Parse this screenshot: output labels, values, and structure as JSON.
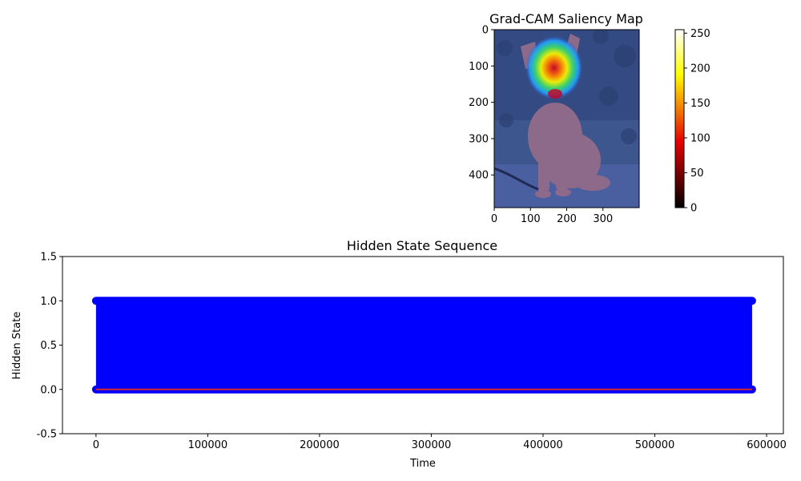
{
  "chart_data": [
    {
      "type": "heatmap",
      "title": "Grad-CAM Saliency Map",
      "xlabel": "",
      "ylabel": "",
      "xlim": [
        0,
        400
      ],
      "ylim": [
        490,
        0
      ],
      "x_ticks": [
        0,
        100,
        200,
        300
      ],
      "y_ticks": [
        0,
        100,
        200,
        300,
        400
      ],
      "colorbar": {
        "colormap": "hot",
        "range": [
          0,
          255
        ],
        "ticks": [
          0,
          50,
          100,
          150,
          200,
          250
        ]
      },
      "hotspot_center": [
        165,
        105
      ]
    },
    {
      "type": "line",
      "title": "Hidden State Sequence",
      "xlabel": "Time",
      "ylabel": "Hidden State",
      "xlim": [
        -30000,
        615000
      ],
      "ylim": [
        -0.5,
        1.5
      ],
      "x_ticks": [
        0,
        100000,
        200000,
        300000,
        400000,
        500000,
        600000
      ],
      "y_ticks": [
        -0.5,
        0.0,
        0.5,
        1.0,
        1.5
      ],
      "x_range": [
        0,
        587000
      ],
      "series": [
        {
          "color": "#0000ff",
          "marker": "o",
          "values_between": [
            0,
            1
          ]
        },
        {
          "color": "#d62728",
          "values_between": [
            0,
            0
          ]
        }
      ]
    }
  ]
}
